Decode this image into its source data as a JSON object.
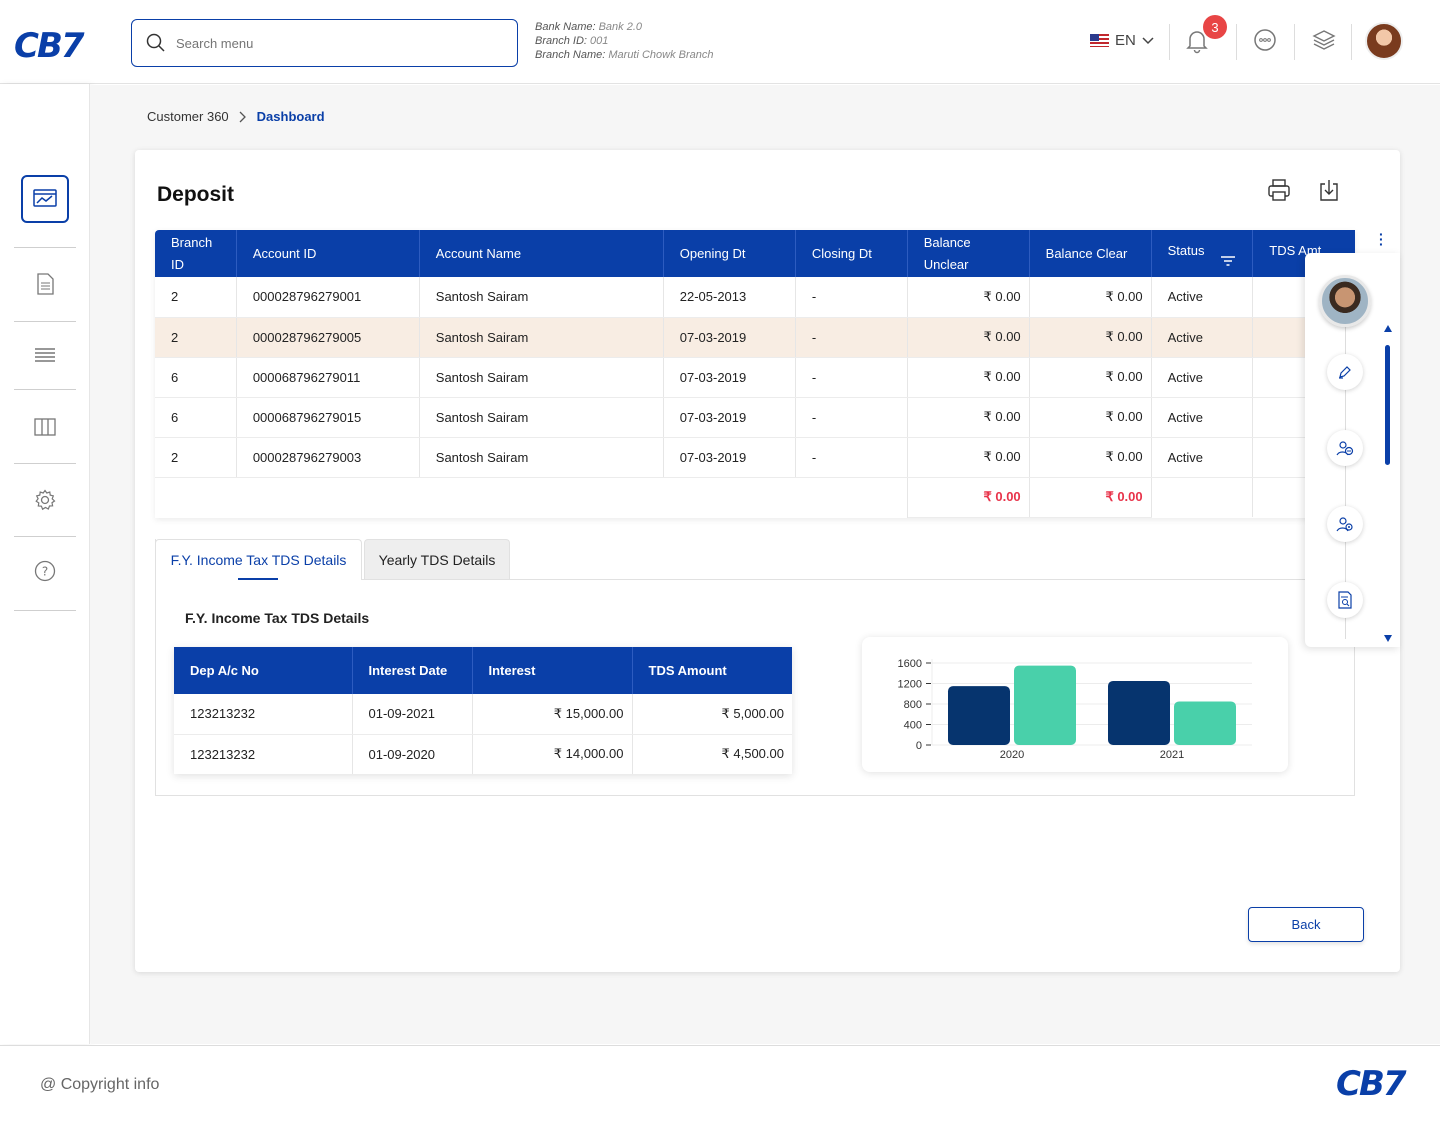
{
  "app": {
    "logo": "CB7"
  },
  "search": {
    "placeholder": "Search menu"
  },
  "bank": {
    "name_label": "Bank Name:",
    "name": "Bank 2.0",
    "branch_id_label": "Branch ID:",
    "branch_id": "001",
    "branch_name_label": "Branch Name:",
    "branch_name": "Maruti Chowk Branch"
  },
  "header": {
    "language": "EN",
    "notification_count": "3"
  },
  "breadcrumb": {
    "parent": "Customer 360",
    "current": "Dashboard"
  },
  "deposit": {
    "title": "Deposit",
    "columns": [
      "Branch ID",
      "Account ID",
      "Account Name",
      "Opening Dt",
      "Closing Dt",
      "Balance Unclear",
      "Balance Clear",
      "Status",
      "TDS Amt"
    ],
    "rows": [
      [
        "2",
        "000028796279001",
        "Santosh Sairam",
        "22-05-2013",
        "-",
        "₹ 0.00",
        "₹ 0.00",
        "Active",
        ""
      ],
      [
        "2",
        "000028796279005",
        "Santosh Sairam",
        "07-03-2019",
        "-",
        "₹ 0.00",
        "₹ 0.00",
        "Active",
        ""
      ],
      [
        "6",
        "000068796279011",
        "Santosh Sairam",
        "07-03-2019",
        "-",
        "₹ 0.00",
        "₹ 0.00",
        "Active",
        ""
      ],
      [
        "6",
        "000068796279015",
        "Santosh Sairam",
        "07-03-2019",
        "-",
        "₹ 0.00",
        "₹ 0.00",
        "Active",
        ""
      ],
      [
        "2",
        "000028796279003",
        "Santosh Sairam",
        "07-03-2019",
        "-",
        "₹ 0.00",
        "₹ 0.00",
        "Active",
        ""
      ]
    ],
    "total_unclear": "₹ 0.00",
    "total_clear": "₹ 0.00"
  },
  "tabs": {
    "tab1": "F.Y. Income Tax TDS Details",
    "tab2": "Yearly TDS Details"
  },
  "tds": {
    "title": "F.Y. Income Tax TDS Details",
    "columns": [
      "Dep A/c No",
      "Interest Date",
      "Interest",
      "TDS Amount"
    ],
    "rows": [
      [
        "123213232",
        "01-09-2021",
        "₹ 15,000.00",
        "₹ 5,000.00"
      ],
      [
        "123213232",
        "01-09-2020",
        "₹ 14,000.00",
        "₹ 4,500.00"
      ]
    ]
  },
  "chart_data": {
    "type": "bar",
    "categories": [
      "2020",
      "2021"
    ],
    "series": [
      {
        "values": [
          1150,
          1250
        ],
        "color": "#06346e"
      },
      {
        "values": [
          1550,
          850
        ],
        "color": "#49d0aa"
      }
    ],
    "yticks": [
      "1600",
      "1200",
      "800",
      "400",
      "0"
    ],
    "ylim": [
      0,
      1600
    ],
    "grid": true,
    "title": "",
    "xlabel": "",
    "ylabel": ""
  },
  "actions": {
    "back": "Back"
  },
  "footer": {
    "copyright": "@ Copyright info",
    "logo": "CB7"
  }
}
